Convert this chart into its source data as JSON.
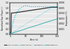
{
  "title": "",
  "xlabel": "Time (s)",
  "ylabel_left": "Normalised flow / Power (--)",
  "ylabel_right": "Temperature (°C)",
  "xlim": [
    0,
    150
  ],
  "ylim_left": [
    0,
    1.2
  ],
  "ylim_right": [
    0,
    0.006
  ],
  "yticks_left": [
    0,
    0.2,
    0.4,
    0.6,
    0.8,
    1.0,
    1.2
  ],
  "yticks_right": [
    0.001,
    0.002,
    0.003,
    0.004,
    0.005,
    0.006
  ],
  "xticks": [
    0,
    50,
    100,
    150
  ],
  "bg_color": "#e8e8e8",
  "grid_color": "#ffffff",
  "solid_dark_color": "#333333",
  "dotted_cyan_color": "#00bbdd",
  "temp1_color": "#00ccee",
  "temp2_color": "#009999",
  "legend_labels": [
    "Direct cooling",
    "Indirect cooling",
    "Temperature 1",
    "Temperature 2"
  ]
}
